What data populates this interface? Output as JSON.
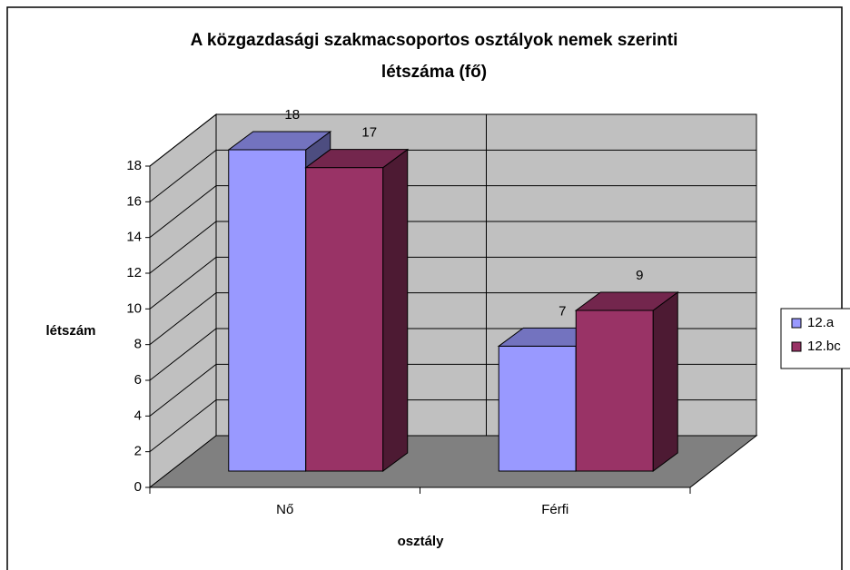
{
  "chart_data": {
    "type": "bar3d",
    "title": [
      "A közgazdasági szakmacsoportos osztályok nemek szerinti",
      "létszáma (fő)"
    ],
    "categories": [
      "Nő",
      "Férfi"
    ],
    "series": [
      {
        "name": "12.a",
        "color": "#9999ff",
        "values": [
          18,
          7
        ]
      },
      {
        "name": "12.bc",
        "color": "#993366",
        "values": [
          17,
          9
        ]
      }
    ],
    "ylim": [
      0,
      18
    ],
    "yticks": [
      0,
      2,
      4,
      6,
      8,
      10,
      12,
      14,
      16,
      18
    ],
    "y_label": "létszám",
    "x_label": "osztály",
    "grid": true,
    "legend": "right"
  }
}
